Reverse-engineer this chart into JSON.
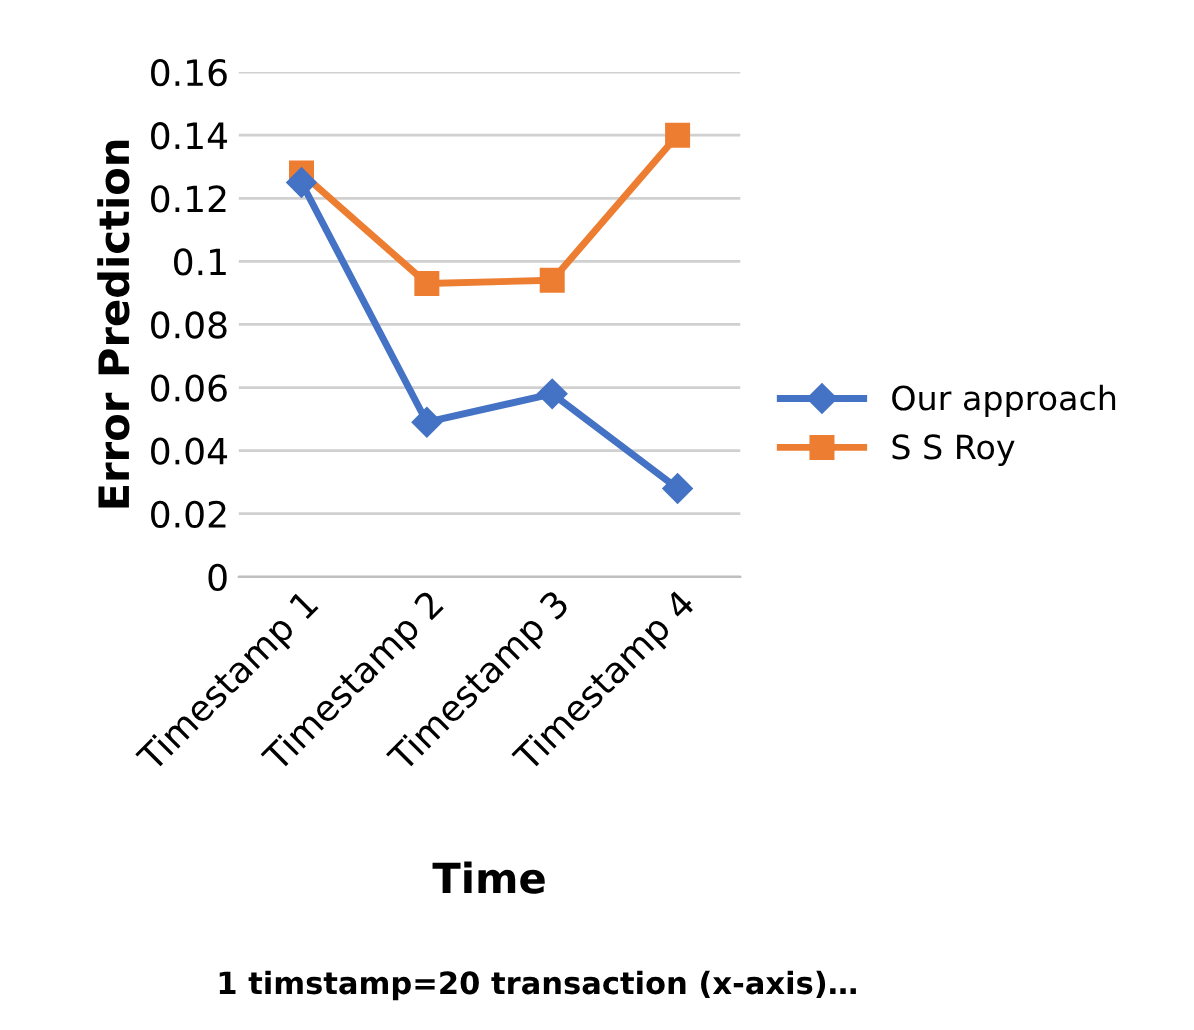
{
  "chart_data": {
    "type": "line",
    "categories": [
      "Timestamp 1",
      "Timestamp 2",
      "Timestamp 3",
      "Timestamp 4"
    ],
    "series": [
      {
        "name": "Our approach",
        "color": "#4472c4",
        "values": [
          0.125,
          0.049,
          0.058,
          0.028
        ],
        "marker": "diamond"
      },
      {
        "name": "S S Roy",
        "color": "#ed7d31",
        "values": [
          0.128,
          0.093,
          0.094,
          0.14
        ],
        "marker": "square"
      }
    ],
    "xlabel": "Time",
    "ylabel": "Error Prediction",
    "annotations": [
      "1 timstamp=20 transaction (x-axis)…"
    ],
    "ylim": [
      0,
      0.16
    ],
    "yticks": [
      0,
      0.02,
      0.04,
      0.06,
      0.08,
      0.1,
      0.12,
      0.14,
      0.16
    ],
    "grid": "y",
    "legend": "right"
  }
}
